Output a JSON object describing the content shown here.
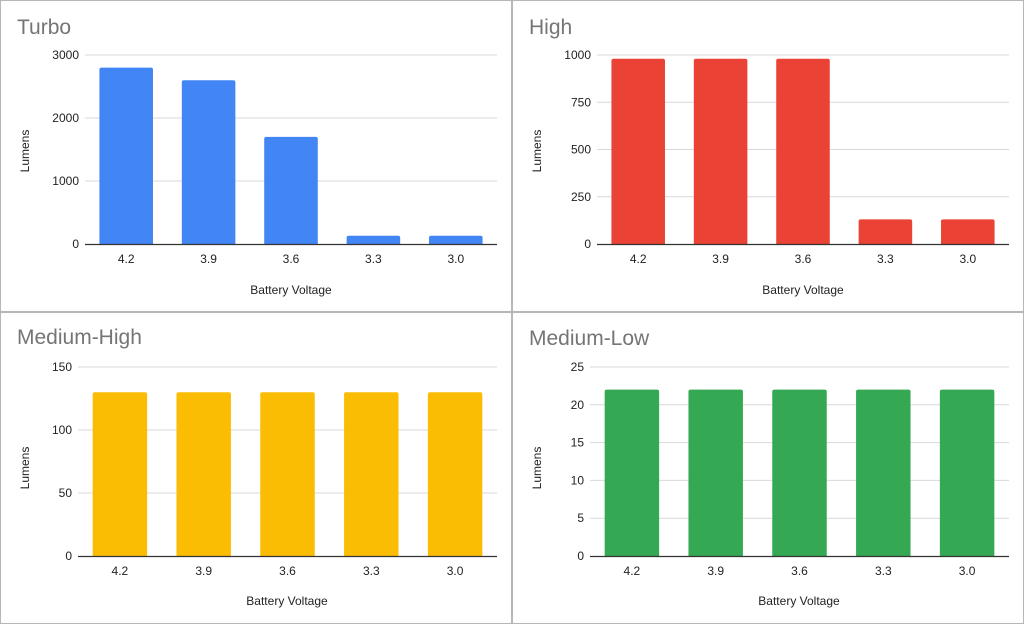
{
  "chart_data": [
    {
      "type": "bar",
      "title": "Turbo",
      "xlabel": "Battery Voltage",
      "ylabel": "Lumens",
      "categories": [
        "4.2",
        "3.9",
        "3.6",
        "3.3",
        "3.0"
      ],
      "values": [
        2800,
        2600,
        1700,
        130,
        130
      ],
      "ylim": [
        0,
        3000
      ],
      "yticks": [
        "0",
        "1000",
        "2000",
        "3000"
      ],
      "color": "#4285F4",
      "grid": true,
      "legend": "none"
    },
    {
      "type": "bar",
      "title": "High",
      "xlabel": "Battery Voltage",
      "ylabel": "Lumens",
      "categories": [
        "4.2",
        "3.9",
        "3.6",
        "3.3",
        "3.0"
      ],
      "values": [
        980,
        980,
        980,
        130,
        130
      ],
      "ylim": [
        0,
        1000
      ],
      "yticks": [
        "0",
        "250",
        "500",
        "750",
        "1000"
      ],
      "color": "#EA4335",
      "grid": true,
      "legend": "none"
    },
    {
      "type": "bar",
      "title": "Medium-High",
      "xlabel": "Battery Voltage",
      "ylabel": "Lumens",
      "categories": [
        "4.2",
        "3.9",
        "3.6",
        "3.3",
        "3.0"
      ],
      "values": [
        130,
        130,
        130,
        130,
        130
      ],
      "ylim": [
        0,
        150
      ],
      "yticks": [
        "0",
        "50",
        "100",
        "150"
      ],
      "color": "#FBBC04",
      "grid": true,
      "legend": "none"
    },
    {
      "type": "bar",
      "title": "Medium-Low",
      "xlabel": "Battery Voltage",
      "ylabel": "Lumens",
      "categories": [
        "4.2",
        "3.9",
        "3.6",
        "3.3",
        "3.0"
      ],
      "values": [
        22,
        22,
        22,
        22,
        22
      ],
      "ylim": [
        0,
        25
      ],
      "yticks": [
        "0",
        "5",
        "10",
        "15",
        "20",
        "25"
      ],
      "color": "#34A853",
      "grid": true,
      "legend": "none"
    }
  ]
}
